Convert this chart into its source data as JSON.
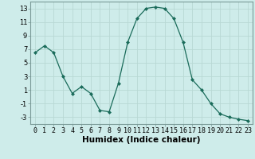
{
  "x": [
    0,
    1,
    2,
    3,
    4,
    5,
    6,
    7,
    8,
    9,
    10,
    11,
    12,
    13,
    14,
    15,
    16,
    17,
    18,
    19,
    20,
    21,
    22,
    23
  ],
  "y": [
    6.5,
    7.5,
    6.5,
    3.0,
    0.5,
    1.5,
    0.5,
    -2.0,
    -2.2,
    2.0,
    8.0,
    11.5,
    13.0,
    13.2,
    13.0,
    11.5,
    8.0,
    2.5,
    1.0,
    -1.0,
    -2.5,
    -3.0,
    -3.3,
    -3.5
  ],
  "xlabel": "Humidex (Indice chaleur)",
  "ylabel": "",
  "title": "",
  "bg_color": "#ceecea",
  "grid_color": "#b8d8d4",
  "line_color": "#1a6b5a",
  "marker_color": "#1a6b5a",
  "ylim": [
    -4,
    14
  ],
  "xlim": [
    -0.5,
    23.5
  ],
  "yticks": [
    -3,
    -1,
    1,
    3,
    5,
    7,
    9,
    11,
    13
  ],
  "xticks": [
    0,
    1,
    2,
    3,
    4,
    5,
    6,
    7,
    8,
    9,
    10,
    11,
    12,
    13,
    14,
    15,
    16,
    17,
    18,
    19,
    20,
    21,
    22,
    23
  ],
  "xlabel_fontsize": 7.5,
  "tick_fontsize": 6.0
}
